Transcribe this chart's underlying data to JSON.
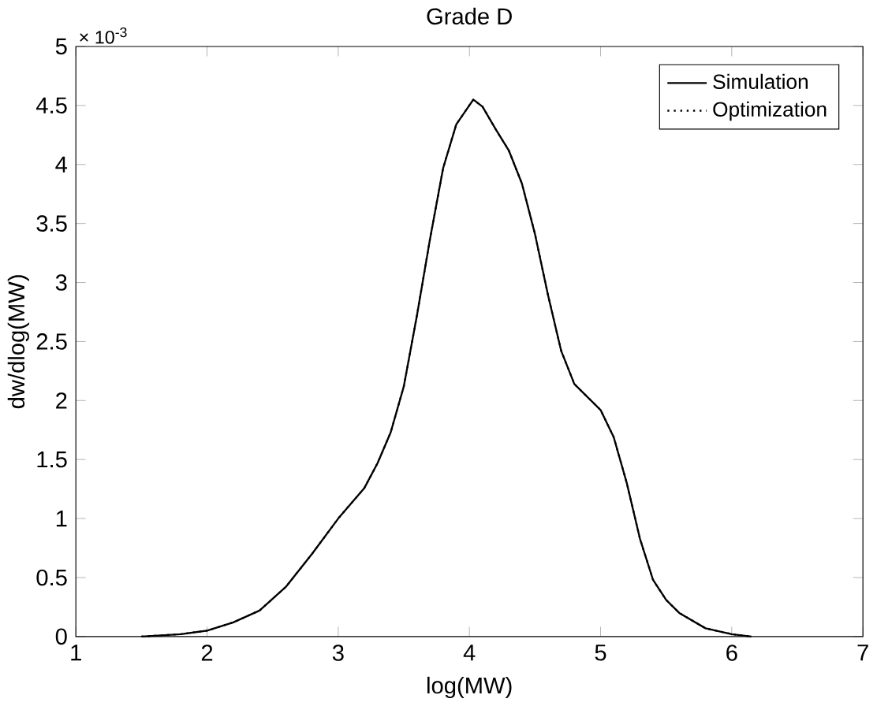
{
  "chart_data": {
    "type": "line",
    "title": "Grade D",
    "xlabel": "log(MW)",
    "ylabel": "dw/dlog(MW)",
    "annotations": [
      "× 10$^{-3}$"
    ],
    "x": [
      1.5,
      1.8,
      2.0,
      2.2,
      2.4,
      2.6,
      2.8,
      3.0,
      3.2,
      3.3,
      3.4,
      3.5,
      3.6,
      3.7,
      3.8,
      3.9,
      4.03,
      4.1,
      4.2,
      4.3,
      4.4,
      4.5,
      4.6,
      4.7,
      4.8,
      4.9,
      5.0,
      5.1,
      5.2,
      5.3,
      5.4,
      5.5,
      5.6,
      5.8,
      6.0,
      6.15
    ],
    "series": [
      {
        "name": "Simulation",
        "color": "#000000",
        "line_style": "solid",
        "values": [
          0,
          0.02,
          0.05,
          0.12,
          0.22,
          0.42,
          0.7,
          1.0,
          1.26,
          1.47,
          1.73,
          2.12,
          2.72,
          3.37,
          3.97,
          4.34,
          4.55,
          4.49,
          4.3,
          4.12,
          3.84,
          3.41,
          2.89,
          2.42,
          2.14,
          2.03,
          1.92,
          1.69,
          1.3,
          0.83,
          0.48,
          0.31,
          0.2,
          0.07,
          0.02,
          0
        ]
      },
      {
        "name": "Optimization",
        "color": "#000000",
        "line_style": "dotted",
        "values": [
          0,
          0.02,
          0.05,
          0.12,
          0.22,
          0.42,
          0.7,
          1.0,
          1.26,
          1.47,
          1.73,
          2.12,
          2.72,
          3.37,
          3.97,
          4.34,
          4.55,
          4.49,
          4.3,
          4.12,
          3.84,
          3.41,
          2.89,
          2.42,
          2.14,
          2.03,
          1.92,
          1.69,
          1.3,
          0.83,
          0.48,
          0.31,
          0.2,
          0.07,
          0.02,
          0
        ]
      }
    ],
    "xlim": [
      1,
      7
    ],
    "ylim": [
      0,
      5
    ],
    "xticks": [
      1,
      2,
      3,
      4,
      5,
      6,
      7
    ],
    "yticks": [
      0,
      0.5,
      1,
      1.5,
      2,
      2.5,
      3,
      3.5,
      4,
      4.5,
      5
    ],
    "legend": "top right",
    "grid": false,
    "marker": "none"
  }
}
